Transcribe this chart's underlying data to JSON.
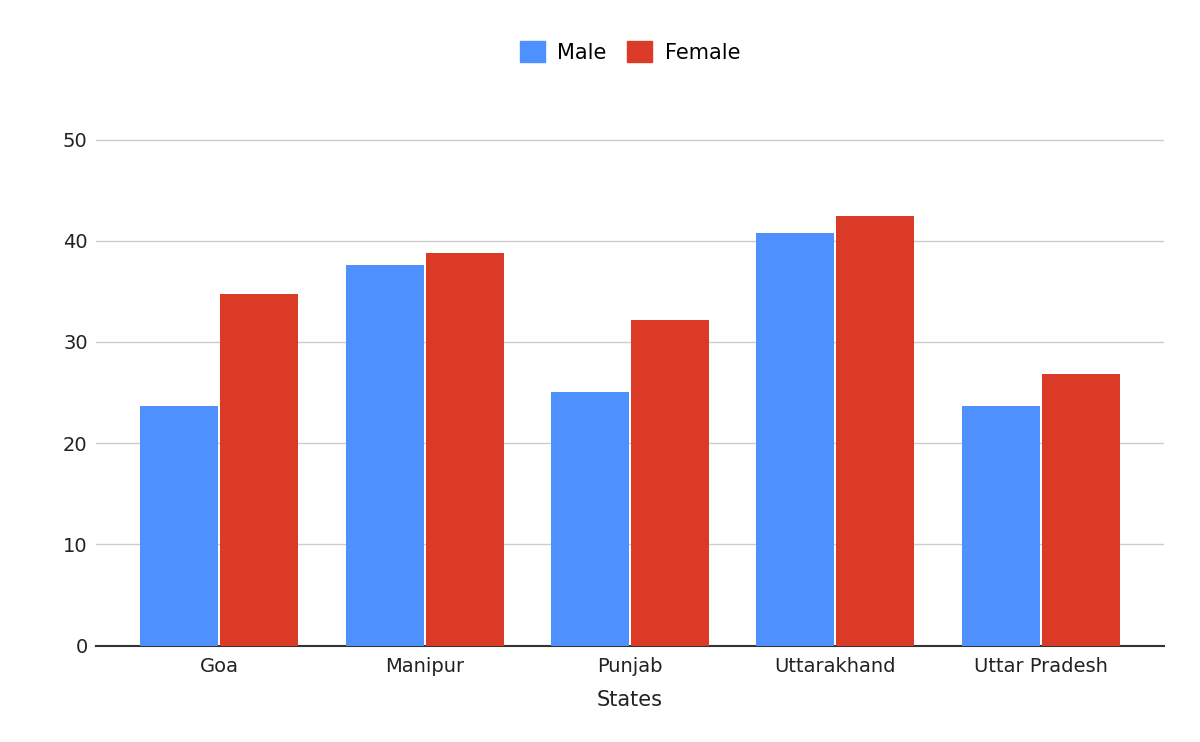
{
  "categories": [
    "Goa",
    "Manipur",
    "Punjab",
    "Uttarakhand",
    "Uttar Pradesh"
  ],
  "male_values": [
    23.7,
    37.6,
    25.1,
    40.8,
    23.7
  ],
  "female_values": [
    34.7,
    38.8,
    32.2,
    42.5,
    26.8
  ],
  "male_color": "#4d90fe",
  "female_color": "#db3b26",
  "xlabel": "States",
  "ylim": [
    0,
    55
  ],
  "yticks": [
    0,
    10,
    20,
    30,
    40,
    50
  ],
  "bar_width": 0.38,
  "bar_gap": 0.01,
  "background_color": "#ffffff",
  "grid_color": "#cccccc",
  "legend_labels": [
    "Male",
    "Female"
  ],
  "axis_label_fontsize": 15,
  "tick_fontsize": 14,
  "legend_fontsize": 15
}
